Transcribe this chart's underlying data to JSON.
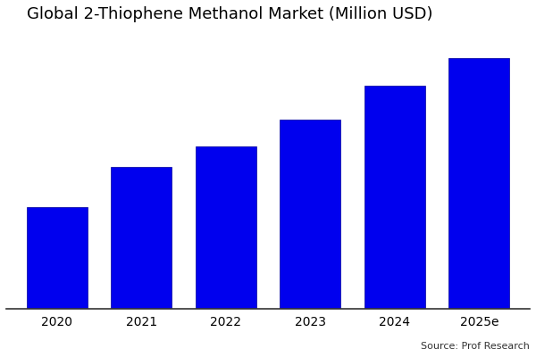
{
  "title": "Global 2-Thiophene Methanol Market (Million USD)",
  "categories": [
    "2020",
    "2021",
    "2022",
    "2023",
    "2024",
    "2025e"
  ],
  "values": [
    30,
    42,
    48,
    56,
    66,
    74
  ],
  "bar_color": "#0000ee",
  "bar_edgecolor": "#000099",
  "background_color": "#ffffff",
  "plot_background": "#ffffff",
  "title_fontsize": 13,
  "tick_fontsize": 10,
  "source_text": "Source: Prof Research",
  "ylim": [
    0,
    82
  ],
  "bar_width": 0.72
}
